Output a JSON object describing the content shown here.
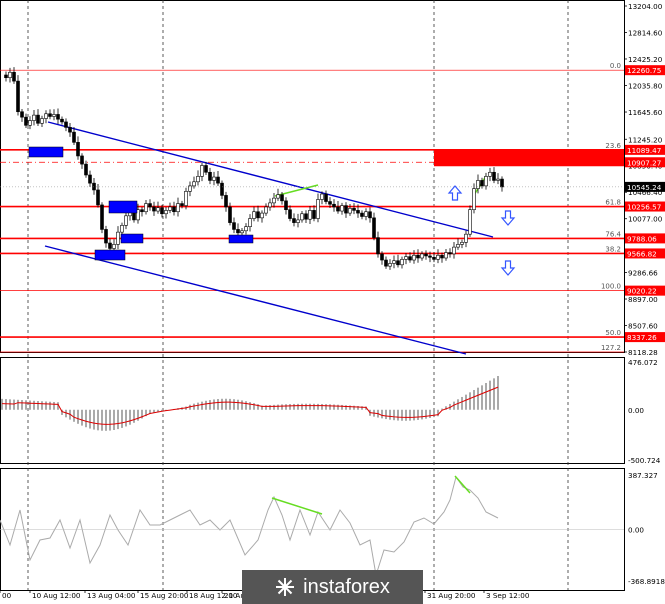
{
  "watermark": {
    "text": "instaforex"
  },
  "time_labels": [
    "00",
    "10 Aug 12:00",
    "13 Aug 04:00",
    "15 Aug 20:00",
    "18 Aug 12:00",
    "21 Au",
    "31 Aug 20:00",
    "3 Sep 12:00"
  ],
  "chart_data": [
    {
      "type": "candlestick",
      "title": "",
      "ylim": [
        8118.28,
        13204.0
      ],
      "price_ticks": [
        "13204.00",
        "12814.60",
        "12425.20",
        "12035.80",
        "11645.60",
        "11245.20",
        "10856.40",
        "10466.40",
        "10077.00",
        "9286.66",
        "8897.00",
        "8507.60",
        "8118.28"
      ],
      "price_labels": [
        {
          "value": 12260.75,
          "text": "12260.75",
          "color": "#ff0000"
        },
        {
          "value": 11089.47,
          "text": "11089.47",
          "color": "#ff0000"
        },
        {
          "value": 10907.27,
          "text": "10907.27",
          "color": "#ff0000"
        },
        {
          "value": 10545.24,
          "text": "10545.24",
          "color": "#000000"
        },
        {
          "value": 10256.57,
          "text": "10256.57",
          "color": "#ff0000"
        },
        {
          "value": 9788.06,
          "text": "9788.06",
          "color": "#ff0000"
        },
        {
          "value": 9566.82,
          "text": "9566.82",
          "color": "#ff0000"
        },
        {
          "value": 9020.22,
          "text": "9020.22",
          "color": "#ff0000"
        },
        {
          "value": 8337.26,
          "text": "8337.26",
          "color": "#ff0000"
        }
      ],
      "fib_levels": [
        {
          "label": "0.0",
          "value": 12260.75
        },
        {
          "label": "23.6",
          "value": 11089.47
        },
        {
          "label": "61.8",
          "value": 10256.57
        },
        {
          "label": "76.4",
          "value": 9788.06
        },
        {
          "label": "38.2",
          "value": 9566.82
        },
        {
          "label": "100.0",
          "value": 9020.22
        },
        {
          "label": "50.0",
          "value": 8337.26
        },
        {
          "label": "127.2",
          "value": 8118.28
        }
      ],
      "colors": {
        "levels": "#ff0000",
        "channel": "#0000cc",
        "divergence": "#66dd22",
        "boxes": "#0000ff",
        "arrows": "#3355ff"
      }
    },
    {
      "type": "macd",
      "ylim": [
        -500.724,
        476.072
      ],
      "ticks": [
        "476.072",
        "0.00",
        "-500.724"
      ]
    },
    {
      "type": "oscillator",
      "ylim": [
        -368.8918,
        387.327
      ],
      "ticks": [
        "387.327",
        "0.00",
        "-368.8918"
      ]
    }
  ]
}
